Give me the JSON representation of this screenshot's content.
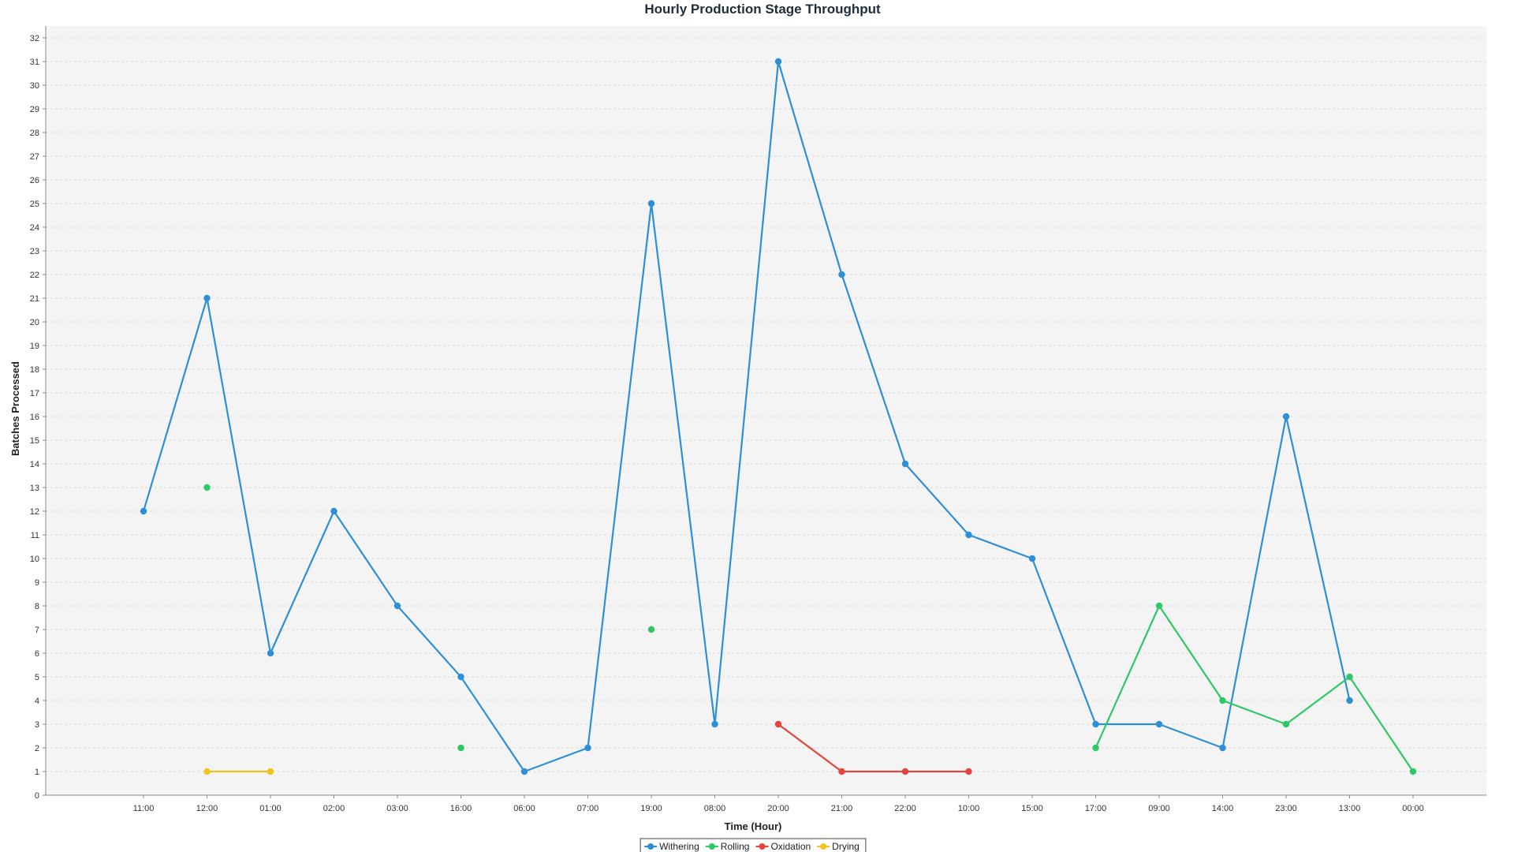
{
  "chart_data": {
    "type": "line",
    "title": "Hourly Production Stage Throughput",
    "xlabel": "Time (Hour)",
    "ylabel": "Batches Processed",
    "ylim": [
      0,
      32
    ],
    "y_ticks": [
      0,
      1,
      2,
      3,
      4,
      5,
      6,
      7,
      8,
      9,
      10,
      11,
      12,
      13,
      14,
      15,
      16,
      17,
      18,
      19,
      20,
      21,
      22,
      23,
      24,
      25,
      26,
      27,
      28,
      29,
      30,
      31,
      32
    ],
    "categories": [
      "11:00",
      "12:00",
      "01:00",
      "02:00",
      "03:00",
      "16:00",
      "06:00",
      "07:00",
      "19:00",
      "08:00",
      "20:00",
      "21:00",
      "22:00",
      "10:00",
      "15:00",
      "17:00",
      "09:00",
      "14:00",
      "23:00",
      "13:00",
      "00:00"
    ],
    "grid": true,
    "legend_position": "bottom-center",
    "series": [
      {
        "name": "Withering",
        "color": "#2e8fd6",
        "values": [
          12,
          21,
          6,
          12,
          8,
          5,
          1,
          2,
          25,
          3,
          31,
          22,
          14,
          11,
          10,
          3,
          3,
          2,
          16,
          4,
          null
        ]
      },
      {
        "name": "Rolling",
        "color": "#2ec866",
        "values": [
          null,
          13,
          null,
          null,
          null,
          2,
          null,
          null,
          7,
          null,
          null,
          null,
          null,
          null,
          null,
          2,
          8,
          4,
          3,
          5,
          1
        ]
      },
      {
        "name": "Oxidation",
        "color": "#e0463c",
        "values": [
          null,
          null,
          null,
          null,
          null,
          null,
          null,
          null,
          null,
          null,
          3,
          1,
          1,
          1,
          null,
          null,
          null,
          null,
          null,
          null,
          null
        ]
      },
      {
        "name": "Drying",
        "color": "#f2c21f",
        "values": [
          null,
          1,
          1,
          null,
          null,
          null,
          null,
          null,
          null,
          null,
          null,
          null,
          null,
          null,
          null,
          null,
          null,
          null,
          null,
          null,
          null
        ]
      }
    ]
  }
}
